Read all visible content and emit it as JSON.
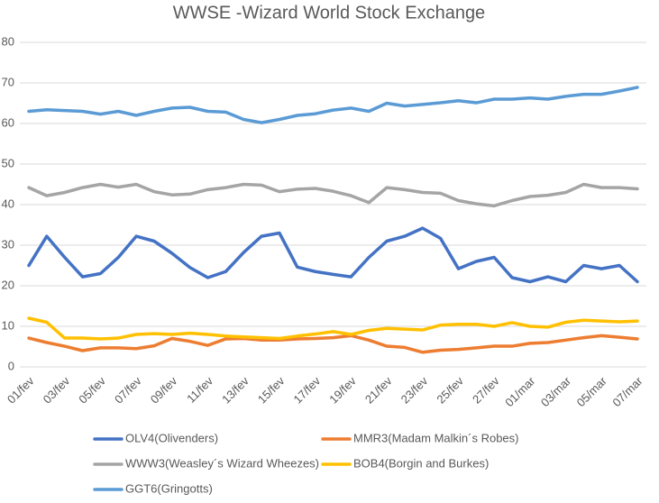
{
  "chart_data": {
    "type": "line",
    "title": "WWSE -Wizard World Stock Exchange",
    "categories": [
      "01/fev",
      null,
      "03/fev",
      null,
      "05/fev",
      null,
      "07/fev",
      null,
      "09/fev",
      null,
      "11/fev",
      null,
      "13/fev",
      null,
      "15/fev",
      null,
      "17/fev",
      null,
      "19/fev",
      null,
      "21/fev",
      null,
      "23/fev",
      null,
      "25/fev",
      null,
      "27/fev",
      null,
      "01/mar",
      null,
      "03/mar",
      null,
      "05/mar",
      null,
      "07/mar"
    ],
    "ylim": [
      0,
      80
    ],
    "yticks": [
      0,
      10,
      20,
      30,
      40,
      50,
      60,
      70,
      80
    ],
    "grid": true,
    "series": [
      {
        "name": "OLV4(Olivenders)",
        "color": "#4472c4",
        "values": [
          25,
          32.2,
          27,
          22.2,
          23,
          27,
          32.2,
          31,
          28,
          24.5,
          22,
          23.5,
          28.2,
          32.2,
          33,
          24.6,
          23.5,
          22.8,
          22.2,
          27,
          31,
          32.2,
          34.2,
          31.7,
          24.2,
          26,
          27,
          22,
          21,
          22.2,
          21,
          25,
          24.2,
          25,
          21
        ]
      },
      {
        "name": "MMR3(Madam Malkin´s Robes)",
        "color": "#ed7d31",
        "values": [
          7.1,
          6,
          5.1,
          4,
          4.7,
          4.7,
          4.5,
          5.2,
          7,
          6.3,
          5.3,
          6.9,
          7,
          6.6,
          6.6,
          6.9,
          7,
          7.2,
          7.7,
          6.6,
          5.1,
          4.8,
          3.6,
          4.1,
          4.3,
          4.7,
          5.1,
          5.1,
          5.8,
          6,
          6.6,
          7.2,
          7.7,
          7.3,
          6.9
        ]
      },
      {
        "name": "WWW3(Weasley´s Wizard Wheezes)",
        "color": "#a5a5a5",
        "values": [
          44.2,
          42.2,
          43,
          44.2,
          45,
          44.3,
          45,
          43.2,
          42.4,
          42.6,
          43.7,
          44.2,
          45,
          44.8,
          43.2,
          43.8,
          44,
          43.3,
          42.2,
          40.5,
          44.2,
          43.7,
          43,
          42.8,
          41,
          40.2,
          39.7,
          41,
          42,
          42.3,
          43,
          45,
          44.2,
          44.2,
          43.9
        ]
      },
      {
        "name": "BOB4(Borgin and Burkes)",
        "color": "#ffc000",
        "values": [
          12,
          11,
          7.1,
          7.1,
          6.9,
          7.1,
          8,
          8.2,
          8,
          8.3,
          8,
          7.6,
          7.4,
          7.2,
          7,
          7.6,
          8.1,
          8.7,
          8,
          9,
          9.5,
          9.3,
          9.1,
          10.3,
          10.5,
          10.5,
          10,
          10.9,
          10,
          9.8,
          11,
          11.5,
          11.3,
          11.1,
          11.3
        ]
      },
      {
        "name": "GGT6(Gringotts)",
        "color": "#5b9bd5",
        "values": [
          63,
          63.4,
          63.2,
          63,
          62.3,
          63,
          62,
          63,
          63.8,
          64,
          63,
          62.8,
          61,
          60.2,
          61,
          62,
          62.4,
          63.3,
          63.8,
          63,
          65,
          64.3,
          64.7,
          65.1,
          65.6,
          65.1,
          66,
          66,
          66.3,
          66,
          66.7,
          67.2,
          67.2,
          68,
          68.9
        ]
      }
    ]
  }
}
